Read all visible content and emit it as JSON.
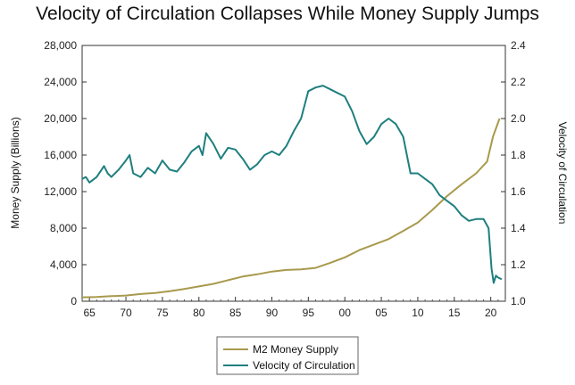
{
  "chart_data": {
    "type": "line",
    "title": "Velocity of Circulation Collapses While Money Supply Jumps",
    "ylabel_left": "Money Supply (Billions)",
    "ylabel_right": "Velocity of Circulation",
    "xlim": [
      1964,
      2022
    ],
    "ylim_left": [
      0,
      28000
    ],
    "ylim_right": [
      1.0,
      2.4
    ],
    "x_ticks": [
      65,
      70,
      75,
      80,
      85,
      90,
      95,
      0,
      5,
      10,
      15,
      20
    ],
    "x_tick_labels": [
      "65",
      "70",
      "75",
      "80",
      "85",
      "90",
      "95",
      "00",
      "05",
      "10",
      "15",
      "20"
    ],
    "y_left_ticks": [
      "0",
      "4,000",
      "8,000",
      "12,000",
      "16,000",
      "20,000",
      "24,000",
      "28,000"
    ],
    "y_right_ticks": [
      "1.0",
      "1.2",
      "1.4",
      "1.6",
      "1.8",
      "2.0",
      "2.2",
      "2.4"
    ],
    "grid": false,
    "legend_placement": "bottom-center",
    "series": [
      {
        "name": "M2 Money Supply",
        "axis": "left",
        "color": "#a89a4c",
        "x": [
          1964,
          1966,
          1968,
          1970,
          1972,
          1974,
          1976,
          1978,
          1980,
          1982,
          1984,
          1986,
          1988,
          1990,
          1992,
          1994,
          1996,
          1998,
          2000,
          2002,
          2004,
          2006,
          2008,
          2010,
          2012,
          2014,
          2016,
          2018,
          2019.5,
          2020.3,
          2021.2
        ],
        "values": [
          430,
          470,
          560,
          620,
          790,
          900,
          1100,
          1350,
          1620,
          1900,
          2300,
          2700,
          2950,
          3250,
          3420,
          3480,
          3650,
          4200,
          4800,
          5600,
          6200,
          6800,
          7700,
          8600,
          10000,
          11500,
          12800,
          14000,
          15300,
          18000,
          20000
        ]
      },
      {
        "name": "Velocity of Circulation",
        "axis": "right",
        "color": "#1f7f7f",
        "x": [
          1964,
          1964.5,
          1965,
          1966,
          1967,
          1967.5,
          1968,
          1969,
          1970,
          1970.5,
          1971,
          1972,
          1973,
          1974,
          1975,
          1976,
          1977,
          1978,
          1979,
          1980,
          1980.5,
          1981,
          1982,
          1983,
          1984,
          1985,
          1986,
          1987,
          1988,
          1989,
          1990,
          1991,
          1992,
          1993,
          1994,
          1995,
          1996,
          1997,
          1998,
          1999,
          2000,
          2001,
          2002,
          2003,
          2004,
          2005,
          2006,
          2007,
          2008,
          2009,
          2010,
          2011,
          2012,
          2013,
          2014,
          2015,
          2016,
          2017,
          2018,
          2019,
          2019.7,
          2020.1,
          2020.4,
          2020.7,
          2021,
          2021.5
        ],
        "values": [
          1.67,
          1.68,
          1.65,
          1.68,
          1.74,
          1.7,
          1.68,
          1.72,
          1.77,
          1.8,
          1.7,
          1.68,
          1.73,
          1.7,
          1.77,
          1.72,
          1.71,
          1.76,
          1.82,
          1.85,
          1.8,
          1.92,
          1.86,
          1.78,
          1.84,
          1.83,
          1.78,
          1.72,
          1.75,
          1.8,
          1.82,
          1.8,
          1.85,
          1.93,
          2.0,
          2.15,
          2.17,
          2.18,
          2.16,
          2.14,
          2.12,
          2.04,
          1.93,
          1.86,
          1.9,
          1.97,
          2.0,
          1.97,
          1.9,
          1.7,
          1.7,
          1.67,
          1.64,
          1.58,
          1.55,
          1.52,
          1.47,
          1.44,
          1.45,
          1.45,
          1.4,
          1.18,
          1.1,
          1.14,
          1.13,
          1.12
        ]
      }
    ]
  }
}
